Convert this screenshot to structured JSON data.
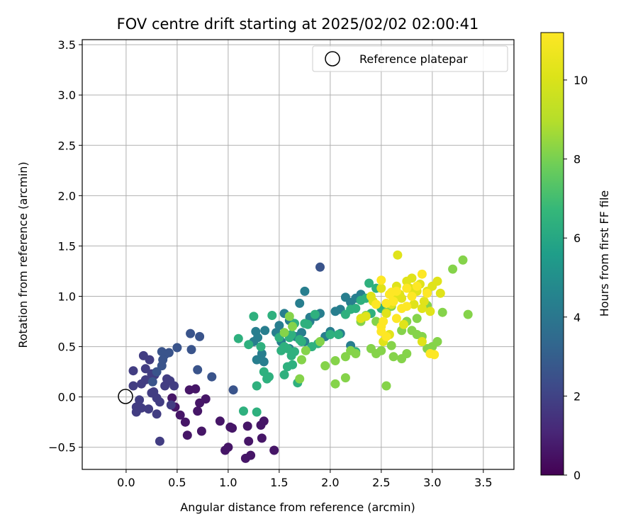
{
  "chart_data": {
    "type": "scatter",
    "title": "FOV centre drift starting at 2025/02/02 02:00:41",
    "xlabel": "Angular distance from reference (arcmin)",
    "ylabel": "Rotation from reference (arcmin)",
    "xlim": [
      -0.43,
      3.8
    ],
    "ylim": [
      -0.72,
      3.55
    ],
    "xticks": [
      "0.0",
      "0.5",
      "1.0",
      "1.5",
      "2.0",
      "2.5",
      "3.0",
      "3.5"
    ],
    "yticks": [
      "−0.5",
      "0.0",
      "0.5",
      "1.0",
      "1.5",
      "2.0",
      "2.5",
      "3.0",
      "3.5"
    ],
    "grid": true,
    "legend": {
      "position": "top-right",
      "label": "Reference platepar",
      "marker": "open-circle"
    },
    "reference_point": {
      "x": 0.0,
      "y": 0.0
    },
    "colorbar": {
      "label": "Hours from first FF file",
      "colormap": "viridis",
      "range": [
        0,
        11.2
      ],
      "ticks": [
        "0",
        "2",
        "4",
        "6",
        "8",
        "10"
      ]
    },
    "series": [
      {
        "hours": 0.6,
        "points": [
          [
            0.45,
            -0.01
          ],
          [
            0.48,
            -0.1
          ],
          [
            0.53,
            -0.18
          ],
          [
            0.58,
            -0.25
          ],
          [
            0.62,
            0.07
          ],
          [
            0.68,
            0.08
          ],
          [
            0.72,
            -0.06
          ],
          [
            0.78,
            -0.02
          ],
          [
            0.6,
            -0.38
          ],
          [
            0.7,
            -0.14
          ],
          [
            0.74,
            -0.34
          ],
          [
            0.92,
            -0.24
          ],
          [
            0.97,
            -0.53
          ],
          [
            1.02,
            -0.3
          ],
          [
            1.0,
            -0.5
          ],
          [
            1.04,
            -0.31
          ],
          [
            1.19,
            -0.29
          ],
          [
            1.2,
            -0.44
          ],
          [
            1.17,
            -0.61
          ],
          [
            1.22,
            -0.58
          ],
          [
            1.32,
            -0.28
          ],
          [
            1.35,
            -0.24
          ],
          [
            1.33,
            -0.41
          ],
          [
            1.45,
            -0.53
          ]
        ]
      },
      {
        "hours": 1.8,
        "points": [
          [
            0.07,
            0.11
          ],
          [
            0.07,
            0.26
          ],
          [
            0.1,
            -0.1
          ],
          [
            0.1,
            -0.15
          ],
          [
            0.13,
            -0.03
          ],
          [
            0.15,
            -0.11
          ],
          [
            0.17,
            0.41
          ],
          [
            0.19,
            0.28
          ],
          [
            0.22,
            -0.12
          ],
          [
            0.23,
            0.37
          ],
          [
            0.25,
            0.04
          ],
          [
            0.27,
            0.05
          ],
          [
            0.28,
            0.22
          ],
          [
            0.3,
            -0.01
          ],
          [
            0.3,
            -0.17
          ],
          [
            0.33,
            -0.05
          ],
          [
            0.33,
            -0.44
          ],
          [
            0.38,
            0.11
          ],
          [
            0.4,
            0.18
          ],
          [
            0.43,
            0.16
          ],
          [
            0.44,
            -0.08
          ],
          [
            0.47,
            0.11
          ],
          [
            0.19,
            0.17
          ],
          [
            0.25,
            0.23
          ],
          [
            0.15,
            0.13
          ]
        ]
      },
      {
        "hours": 2.6,
        "points": [
          [
            0.35,
            0.45
          ],
          [
            0.38,
            0.42
          ],
          [
            0.42,
            0.44
          ],
          [
            0.5,
            0.49
          ],
          [
            0.64,
            0.47
          ],
          [
            0.63,
            0.63
          ],
          [
            0.72,
            0.6
          ],
          [
            0.7,
            0.27
          ],
          [
            0.84,
            0.2
          ],
          [
            0.35,
            0.31
          ],
          [
            0.36,
            0.37
          ],
          [
            0.3,
            0.25
          ],
          [
            1.05,
            0.07
          ],
          [
            1.9,
            1.29
          ],
          [
            0.26,
            0.15
          ]
        ]
      },
      {
        "hours": 4.3,
        "points": [
          [
            1.28,
            0.37
          ],
          [
            1.33,
            0.43
          ],
          [
            1.35,
            0.35
          ],
          [
            1.36,
            0.66
          ],
          [
            1.47,
            0.64
          ],
          [
            1.5,
            0.71
          ],
          [
            1.55,
            0.83
          ],
          [
            1.6,
            0.76
          ],
          [
            1.66,
            0.6
          ],
          [
            1.7,
            0.93
          ],
          [
            1.72,
            0.64
          ],
          [
            1.75,
            1.05
          ],
          [
            1.8,
            0.79
          ],
          [
            1.86,
            0.8
          ],
          [
            1.9,
            0.83
          ],
          [
            1.95,
            0.6
          ],
          [
            2.05,
            0.85
          ],
          [
            2.1,
            0.87
          ],
          [
            2.15,
            0.99
          ],
          [
            2.2,
            0.94
          ],
          [
            2.25,
            0.98
          ],
          [
            2.3,
            1.02
          ],
          [
            1.27,
            0.65
          ],
          [
            1.29,
            0.59
          ],
          [
            1.8,
            0.75
          ],
          [
            2.0,
            0.65
          ],
          [
            1.52,
            0.55
          ],
          [
            1.6,
            0.48
          ],
          [
            1.75,
            0.55
          ],
          [
            1.25,
            0.55
          ],
          [
            2.2,
            0.51
          ],
          [
            2.1,
            0.63
          ]
        ]
      },
      {
        "hours": 6.4,
        "points": [
          [
            1.15,
            -0.14
          ],
          [
            1.28,
            -0.15
          ],
          [
            1.1,
            0.58
          ],
          [
            1.2,
            0.52
          ],
          [
            1.25,
            0.8
          ],
          [
            1.28,
            0.11
          ],
          [
            1.32,
            0.5
          ],
          [
            1.35,
            0.25
          ],
          [
            1.38,
            0.18
          ],
          [
            1.4,
            0.2
          ],
          [
            1.43,
            0.81
          ],
          [
            1.5,
            0.59
          ],
          [
            1.52,
            0.46
          ],
          [
            1.55,
            0.5
          ],
          [
            1.58,
            0.48
          ],
          [
            1.6,
            0.59
          ],
          [
            1.62,
            0.62
          ],
          [
            1.63,
            0.32
          ],
          [
            1.65,
            0.73
          ],
          [
            1.7,
            0.57
          ],
          [
            1.72,
            0.55
          ],
          [
            1.75,
            0.73
          ],
          [
            1.78,
            0.72
          ],
          [
            1.82,
            0.5
          ],
          [
            1.88,
            0.53
          ],
          [
            2.0,
            0.62
          ],
          [
            2.08,
            0.62
          ],
          [
            2.15,
            0.82
          ],
          [
            2.2,
            0.87
          ],
          [
            2.25,
            0.88
          ],
          [
            2.3,
            0.96
          ],
          [
            2.35,
            0.98
          ],
          [
            2.38,
            1.13
          ],
          [
            2.45,
            1.08
          ],
          [
            2.5,
            0.88
          ],
          [
            2.4,
            0.83
          ],
          [
            1.55,
            0.22
          ],
          [
            1.58,
            0.3
          ],
          [
            1.62,
            0.41
          ],
          [
            1.68,
            0.14
          ],
          [
            1.65,
            0.45
          ],
          [
            1.85,
            0.82
          ],
          [
            2.25,
            0.45
          ]
        ]
      },
      {
        "hours": 8.2,
        "points": [
          [
            1.55,
            0.64
          ],
          [
            1.6,
            0.8
          ],
          [
            1.63,
            0.7
          ],
          [
            1.7,
            0.18
          ],
          [
            1.72,
            0.37
          ],
          [
            1.76,
            0.46
          ],
          [
            1.9,
            0.55
          ],
          [
            1.95,
            0.31
          ],
          [
            2.05,
            0.36
          ],
          [
            2.05,
            0.13
          ],
          [
            2.15,
            0.19
          ],
          [
            2.15,
            0.4
          ],
          [
            2.2,
            0.46
          ],
          [
            2.25,
            0.43
          ],
          [
            2.3,
            0.75
          ],
          [
            2.35,
            0.81
          ],
          [
            2.4,
            0.48
          ],
          [
            2.45,
            0.43
          ],
          [
            2.5,
            0.46
          ],
          [
            2.55,
            0.11
          ],
          [
            2.6,
            0.51
          ],
          [
            2.62,
            0.4
          ],
          [
            2.7,
            0.38
          ],
          [
            2.75,
            0.43
          ],
          [
            2.8,
            0.66
          ],
          [
            2.85,
            0.62
          ],
          [
            2.9,
            0.6
          ],
          [
            2.95,
            0.48
          ],
          [
            3.0,
            0.5
          ],
          [
            3.05,
            0.55
          ],
          [
            3.1,
            0.84
          ],
          [
            3.2,
            1.27
          ],
          [
            3.3,
            1.36
          ],
          [
            3.35,
            0.82
          ],
          [
            2.75,
            0.75
          ],
          [
            2.7,
            0.66
          ],
          [
            2.85,
            0.78
          ],
          [
            2.95,
            0.91
          ],
          [
            2.45,
            0.75
          ],
          [
            2.55,
            0.84
          ],
          [
            2.6,
            0.9
          ]
        ]
      },
      {
        "hours": 10.2,
        "points": [
          [
            2.3,
            0.78
          ],
          [
            2.35,
            0.8
          ],
          [
            2.42,
            0.95
          ],
          [
            2.5,
            1.08
          ],
          [
            2.55,
            0.83
          ],
          [
            2.6,
            0.92
          ],
          [
            2.62,
            0.96
          ],
          [
            2.65,
            1.1
          ],
          [
            2.68,
            1.02
          ],
          [
            2.7,
            0.98
          ],
          [
            2.75,
            1.15
          ],
          [
            2.78,
            1.08
          ],
          [
            2.8,
            1.18
          ],
          [
            2.82,
            0.92
          ],
          [
            2.85,
            1.05
          ],
          [
            2.88,
            1.12
          ],
          [
            2.9,
            0.88
          ],
          [
            2.92,
            0.95
          ],
          [
            2.95,
            1.05
          ],
          [
            3.0,
            1.1
          ],
          [
            3.05,
            1.15
          ],
          [
            3.08,
            1.03
          ],
          [
            2.66,
            1.41
          ],
          [
            2.98,
            0.85
          ],
          [
            2.72,
            0.72
          ],
          [
            2.58,
            0.62
          ],
          [
            2.52,
            0.55
          ],
          [
            2.62,
            0.98
          ],
          [
            2.9,
            0.55
          ],
          [
            2.4,
            1.0
          ]
        ]
      },
      {
        "hours": 11.2,
        "points": [
          [
            2.45,
            0.92
          ],
          [
            2.5,
            0.7
          ],
          [
            2.52,
            0.75
          ],
          [
            2.55,
            0.93
          ],
          [
            2.58,
            1.02
          ],
          [
            2.6,
            1.04
          ],
          [
            2.62,
            0.95
          ],
          [
            2.65,
            0.78
          ],
          [
            2.7,
            0.88
          ],
          [
            2.75,
            0.9
          ],
          [
            2.8,
            1.0
          ],
          [
            2.85,
            1.1
          ],
          [
            2.9,
            1.22
          ],
          [
            2.95,
            1.03
          ],
          [
            2.98,
            0.43
          ],
          [
            3.02,
            0.42
          ],
          [
            2.55,
            0.6
          ],
          [
            2.65,
            1.05
          ],
          [
            2.5,
            1.16
          ],
          [
            2.75,
            1.08
          ],
          [
            2.5,
            0.65
          ]
        ]
      }
    ]
  }
}
